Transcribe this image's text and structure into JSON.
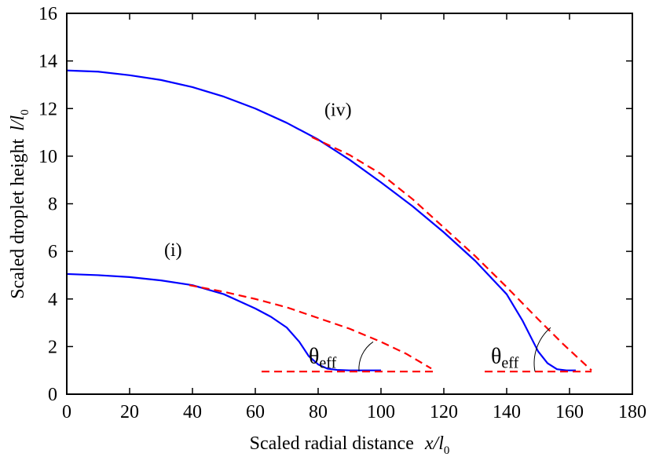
{
  "chart_data": {
    "type": "line",
    "xlabel": {
      "text": "Scaled radial distance",
      "var": "x/l",
      "sub": "0"
    },
    "ylabel": {
      "text": "Scaled droplet height",
      "var": "l/l",
      "sub": "0"
    },
    "xlim": [
      0,
      180
    ],
    "ylim": [
      0,
      16
    ],
    "xticks": [
      "0",
      "20",
      "40",
      "60",
      "80",
      "100",
      "120",
      "140",
      "160",
      "180"
    ],
    "yticks": [
      "0",
      "2",
      "4",
      "6",
      "8",
      "10",
      "12",
      "14",
      "16"
    ],
    "grid": false,
    "colors": {
      "profile": "#0000ff",
      "fit": "#ff0000",
      "axis": "#000000"
    },
    "series": [
      {
        "label": "(i)",
        "style": "solid",
        "color": "#0000ff",
        "x": [
          0,
          10,
          20,
          30,
          40,
          50,
          60,
          65,
          70,
          74,
          77,
          80,
          83,
          86,
          90,
          95,
          100
        ],
        "y": [
          5.05,
          5.0,
          4.92,
          4.78,
          4.58,
          4.2,
          3.6,
          3.25,
          2.8,
          2.2,
          1.6,
          1.25,
          1.07,
          1.02,
          1.0,
          1.0,
          1.0
        ]
      },
      {
        "label": "(iv)",
        "style": "solid",
        "color": "#0000ff",
        "x": [
          0,
          10,
          20,
          30,
          40,
          50,
          60,
          70,
          80,
          90,
          100,
          110,
          120,
          130,
          140,
          145,
          150,
          153,
          156,
          159,
          162
        ],
        "y": [
          13.6,
          13.55,
          13.4,
          13.2,
          12.9,
          12.5,
          12.0,
          11.4,
          10.7,
          9.85,
          8.9,
          7.9,
          6.8,
          5.6,
          4.2,
          3.1,
          1.8,
          1.3,
          1.05,
          1.0,
          1.0
        ]
      },
      {
        "label": "(i) fit",
        "style": "dashed",
        "color": "#ff0000",
        "x": [
          39,
          50,
          60,
          70,
          80,
          90,
          100,
          108,
          116
        ],
        "y": [
          4.58,
          4.3,
          4.0,
          3.65,
          3.2,
          2.75,
          2.2,
          1.7,
          1.08
        ]
      },
      {
        "label": "(iv) fit",
        "style": "dashed",
        "color": "#ff0000",
        "x": [
          78,
          90,
          100,
          110,
          120,
          130,
          140,
          150,
          158,
          167
        ],
        "y": [
          10.8,
          10.05,
          9.25,
          8.2,
          7.0,
          5.8,
          4.5,
          3.15,
          2.1,
          1.0
        ]
      },
      {
        "label": "(i) baseline",
        "style": "dashed",
        "color": "#ff0000",
        "x": [
          62,
          117
        ],
        "y": [
          0.95,
          0.95
        ]
      },
      {
        "label": "(iv) baseline",
        "style": "dashed",
        "color": "#ff0000",
        "x": [
          133,
          167
        ],
        "y": [
          0.95,
          0.95
        ]
      }
    ],
    "annotations": [
      {
        "text": "(i)",
        "x": 31,
        "y": 5.8
      },
      {
        "text": "(iv)",
        "x": 82,
        "y": 11.7
      },
      {
        "text": "θ",
        "sub": "eff",
        "x": 77,
        "y": 1.3,
        "arc_center": [
          93,
          0.95
        ],
        "arc_to": [
          97.5,
          2.2
        ]
      },
      {
        "text": "θ",
        "sub": "eff",
        "x": 135,
        "y": 1.3,
        "arc_center": [
          149,
          0.95
        ],
        "arc_to": [
          154,
          2.8
        ]
      }
    ]
  }
}
